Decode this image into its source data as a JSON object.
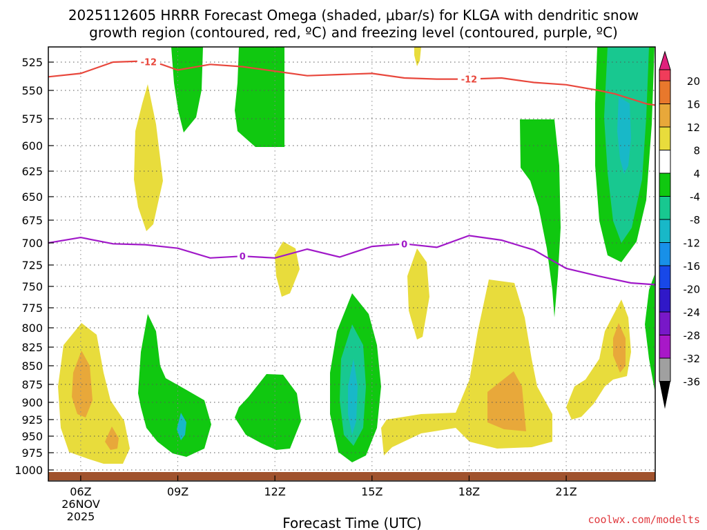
{
  "title_line1": "2025112605 HRRR Forecast Omega (shaded, μbar/s) for KLGA with dendritic snow",
  "title_line2": "growth region (contoured, red, ºC) and freezing level (contoured, purple, ºC)",
  "xlabel": "Forecast Time (UTC)",
  "credit": "coolwx.com/modelts",
  "date_label_1": "26NOV",
  "date_label_2": "2025",
  "chart_data": {
    "type": "contour",
    "x_axis": {
      "range_hours": [
        5,
        23.75
      ],
      "ticks": [
        {
          "hour": 6,
          "label": "06Z"
        },
        {
          "hour": 9,
          "label": "09Z"
        },
        {
          "hour": 12,
          "label": "12Z"
        },
        {
          "hour": 15,
          "label": "15Z"
        },
        {
          "hour": 18,
          "label": "18Z"
        },
        {
          "hour": 21,
          "label": "21Z"
        }
      ]
    },
    "y_axis": {
      "unit": "mb",
      "inverted": true,
      "levels": [
        525,
        550,
        575,
        600,
        625,
        650,
        675,
        700,
        725,
        750,
        775,
        800,
        825,
        850,
        875,
        900,
        925,
        950,
        975,
        1000
      ]
    },
    "colorbar": {
      "ticks": [
        "20",
        "16",
        "12",
        "8",
        "4",
        "-4",
        "-8",
        "-12",
        "-16",
        "-20",
        "-24",
        "-28",
        "-32",
        "-36"
      ],
      "colors": [
        "#f03c5a",
        "#e8782c",
        "#e8a83a",
        "#e8dc3c",
        "#ffffff",
        "#10c810",
        "#18c890",
        "#18b8c8",
        "#1890e8",
        "#1848e8",
        "#3018c8",
        "#7818c8",
        "#a818c8",
        "#a0a0a0"
      ],
      "top_arrow_color": "#e0207c",
      "bottom_arrow_color": "#000000"
    },
    "omega_regions": [
      {
        "level": "-8",
        "color": "#10c810",
        "pts": [
          [
            7.7,
            1000
          ],
          [
            7.6,
            1000
          ],
          [
            7.6,
            1000
          ]
        ]
      }
    ],
    "isotherm_-12": {
      "label": "-12",
      "color": "#e8473c",
      "points": [
        [
          5,
          538
        ],
        [
          6,
          535
        ],
        [
          7,
          525
        ],
        [
          8,
          524
        ],
        [
          8.5,
          527
        ],
        [
          9,
          532
        ],
        [
          10,
          527
        ],
        [
          11,
          529
        ],
        [
          12,
          533
        ],
        [
          13,
          537
        ],
        [
          14,
          536
        ],
        [
          15,
          535
        ],
        [
          16,
          539
        ],
        [
          17,
          540
        ],
        [
          18,
          540
        ],
        [
          19,
          539
        ],
        [
          20,
          543
        ],
        [
          21,
          545
        ],
        [
          22,
          550
        ],
        [
          22.5,
          553
        ],
        [
          23.5,
          562
        ],
        [
          23.75,
          563
        ]
      ],
      "label_positions": [
        8.1,
        18
      ]
    },
    "isotherm_0": {
      "label": "0",
      "color": "#a018c8",
      "points": [
        [
          5,
          700
        ],
        [
          6,
          694
        ],
        [
          7,
          701
        ],
        [
          8,
          702
        ],
        [
          9,
          706
        ],
        [
          10,
          717
        ],
        [
          11,
          715
        ],
        [
          11.5,
          716
        ],
        [
          12,
          717
        ],
        [
          13,
          707
        ],
        [
          14,
          716
        ],
        [
          15,
          704
        ],
        [
          16,
          701
        ],
        [
          17,
          705
        ],
        [
          18,
          692
        ],
        [
          19,
          697
        ],
        [
          20,
          708
        ],
        [
          21,
          729
        ],
        [
          22,
          738
        ],
        [
          23,
          746
        ],
        [
          23.75,
          748
        ]
      ],
      "label_positions": [
        11,
        16
      ]
    },
    "ground": {
      "color": "#a0522d",
      "top_mb": 1000.5
    }
  }
}
